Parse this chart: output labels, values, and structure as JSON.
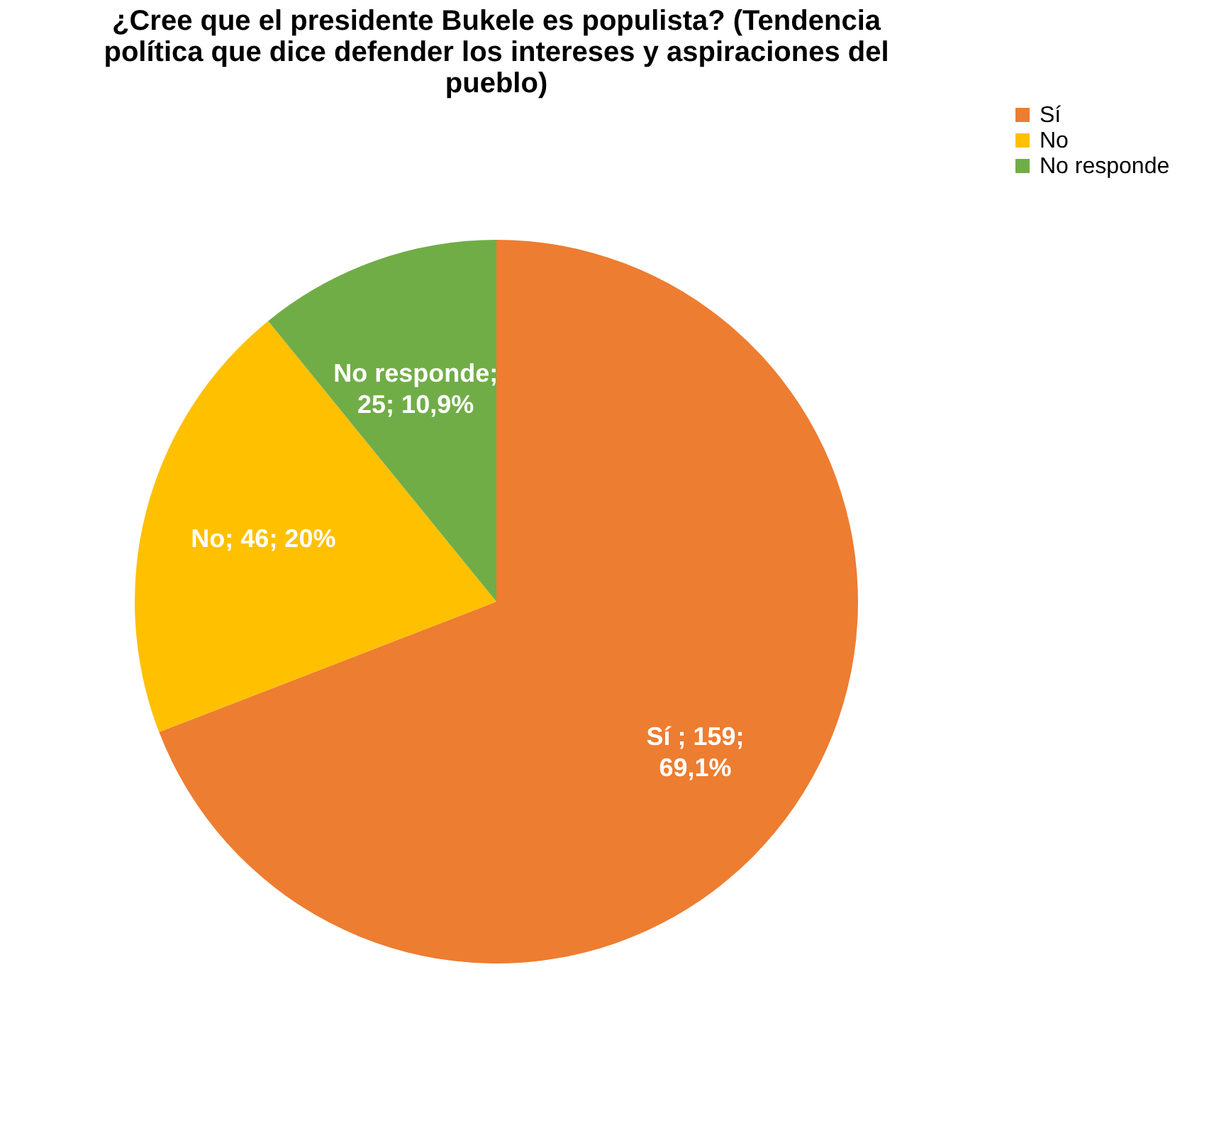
{
  "chart_data": {
    "type": "pie",
    "title": "¿Cree que el presidente Bukele es populista? (Tendencia política que dice defender los intereses y aspiraciones del pueblo)",
    "categories": [
      "Sí",
      "No",
      "No responde"
    ],
    "values": [
      159,
      46,
      25
    ],
    "colors": [
      "#ed7d31",
      "#ffc000",
      "#70ad47"
    ],
    "value_labels": [
      "Sí ; 159; 69,1%",
      "No; 46; 20%",
      "No responde; 25; 10,9%"
    ],
    "legend": "right"
  }
}
